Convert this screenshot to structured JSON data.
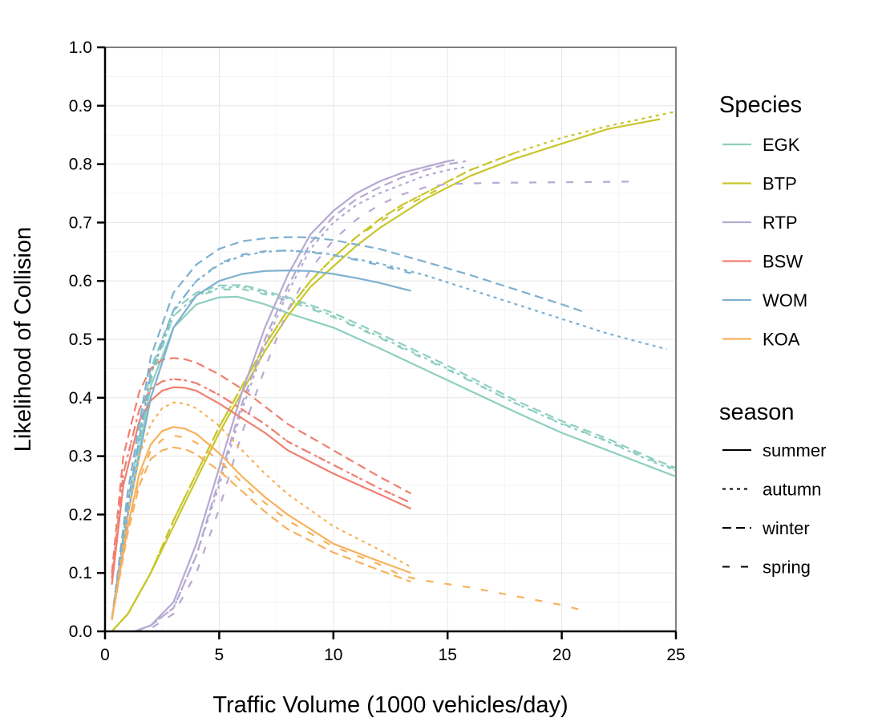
{
  "chart_data": {
    "type": "line",
    "xlabel": "Traffic Volume (1000 vehicles/day)",
    "ylabel": "Likelihood of Collision",
    "xlim": [
      0,
      25
    ],
    "ylim": [
      0,
      1
    ],
    "x_ticks": [
      0,
      5,
      10,
      15,
      20,
      25
    ],
    "y_ticks": [
      0.0,
      0.1,
      0.2,
      0.3,
      0.4,
      0.5,
      0.6,
      0.7,
      0.8,
      0.9,
      1.0
    ],
    "x_tick_labels": [
      "0",
      "5",
      "10",
      "15",
      "20",
      "25"
    ],
    "y_tick_labels": [
      "0.0",
      "0.1",
      "0.2",
      "0.3",
      "0.4",
      "0.5",
      "0.6",
      "0.7",
      "0.8",
      "0.9",
      "1.0"
    ],
    "grid": true,
    "legend_position": "right",
    "legend_species_title": "Species",
    "legend_season_title": "season",
    "species": [
      {
        "name": "EGK",
        "color": "#8ecfc0"
      },
      {
        "name": "BTP",
        "color": "#c9c62c"
      },
      {
        "name": "RTP",
        "color": "#b6a9d2"
      },
      {
        "name": "BSW",
        "color": "#f07f70"
      },
      {
        "name": "WOM",
        "color": "#7eb0d0"
      },
      {
        "name": "KOA",
        "color": "#f7b15c"
      }
    ],
    "seasons": [
      {
        "name": "summer",
        "dash": "none"
      },
      {
        "name": "autumn",
        "dash": "4,5"
      },
      {
        "name": "winter",
        "dash": "11,6"
      },
      {
        "name": "spring",
        "dash": "9,14"
      }
    ],
    "series": [
      {
        "species": "EGK",
        "season": "summer",
        "x": [
          0.3,
          1,
          2,
          3,
          4,
          5,
          5.8,
          7,
          8,
          10,
          12,
          15,
          18,
          20,
          22,
          24,
          25
        ],
        "y": [
          0.02,
          0.2,
          0.42,
          0.52,
          0.56,
          0.572,
          0.573,
          0.56,
          0.545,
          0.52,
          0.485,
          0.43,
          0.375,
          0.34,
          0.31,
          0.28,
          0.265
        ]
      },
      {
        "species": "EGK",
        "season": "autumn",
        "x": [
          0.3,
          1,
          2,
          3,
          4,
          5,
          6,
          7,
          8,
          10,
          12,
          15,
          18,
          20,
          22,
          24,
          25
        ],
        "y": [
          0.02,
          0.21,
          0.44,
          0.54,
          0.575,
          0.588,
          0.59,
          0.58,
          0.57,
          0.54,
          0.505,
          0.45,
          0.39,
          0.355,
          0.325,
          0.29,
          0.275
        ]
      },
      {
        "species": "EGK",
        "season": "winter",
        "x": [
          0.3,
          1,
          2,
          3,
          4,
          5,
          6,
          7,
          8,
          10,
          12,
          15,
          18,
          20,
          22,
          24,
          25
        ],
        "y": [
          0.02,
          0.22,
          0.45,
          0.55,
          0.58,
          0.592,
          0.593,
          0.583,
          0.572,
          0.545,
          0.51,
          0.455,
          0.395,
          0.36,
          0.33,
          0.295,
          0.28
        ]
      },
      {
        "species": "EGK",
        "season": "spring",
        "x": [
          0.3,
          1,
          2,
          3,
          4,
          5,
          6,
          7,
          8,
          10,
          12,
          15,
          18,
          20,
          22,
          24,
          25
        ],
        "y": [
          0.02,
          0.2,
          0.43,
          0.54,
          0.574,
          0.585,
          0.586,
          0.577,
          0.566,
          0.538,
          0.503,
          0.448,
          0.39,
          0.356,
          0.326,
          0.292,
          0.277
        ]
      },
      {
        "species": "BTP",
        "season": "summer",
        "x": [
          0.3,
          1,
          2,
          3,
          4,
          5,
          6,
          7,
          8,
          9,
          10,
          11,
          12,
          13,
          14,
          15,
          16,
          18,
          20,
          22,
          24.3
        ],
        "y": [
          0.0,
          0.03,
          0.1,
          0.18,
          0.26,
          0.34,
          0.41,
          0.48,
          0.54,
          0.59,
          0.625,
          0.66,
          0.69,
          0.715,
          0.74,
          0.76,
          0.78,
          0.81,
          0.835,
          0.86,
          0.877
        ]
      },
      {
        "species": "BTP",
        "season": "autumn",
        "x": [
          0.3,
          1,
          2,
          3,
          4,
          5,
          6,
          7,
          8,
          9,
          10,
          11,
          12,
          13,
          14,
          15,
          16,
          18,
          20,
          22,
          25
        ],
        "y": [
          0.0,
          0.03,
          0.1,
          0.19,
          0.27,
          0.35,
          0.42,
          0.49,
          0.55,
          0.6,
          0.64,
          0.675,
          0.705,
          0.73,
          0.75,
          0.77,
          0.79,
          0.82,
          0.845,
          0.865,
          0.89
        ]
      },
      {
        "species": "BTP",
        "season": "winter",
        "x": [
          0.3,
          1,
          2,
          3,
          4,
          5,
          6,
          7,
          8,
          9,
          10,
          11,
          12,
          13,
          14,
          15,
          16,
          18
        ],
        "y": [
          0.0,
          0.03,
          0.1,
          0.19,
          0.27,
          0.35,
          0.42,
          0.49,
          0.55,
          0.6,
          0.64,
          0.675,
          0.705,
          0.73,
          0.75,
          0.77,
          0.79,
          0.82
        ]
      },
      {
        "species": "BTP",
        "season": "spring",
        "x": [
          0.3,
          1,
          2,
          3,
          4,
          5,
          6,
          7,
          8,
          9,
          10,
          11,
          12,
          13,
          14,
          15
        ],
        "y": [
          0.0,
          0.03,
          0.1,
          0.19,
          0.27,
          0.35,
          0.42,
          0.49,
          0.55,
          0.6,
          0.64,
          0.675,
          0.7,
          0.725,
          0.745,
          0.765
        ]
      },
      {
        "species": "RTP",
        "season": "summer",
        "x": [
          1.3,
          2,
          3,
          4,
          5,
          6,
          7,
          8,
          9,
          10,
          11,
          12,
          13,
          14,
          15,
          15.3
        ],
        "y": [
          0.0,
          0.01,
          0.05,
          0.15,
          0.28,
          0.41,
          0.52,
          0.61,
          0.68,
          0.72,
          0.75,
          0.77,
          0.785,
          0.795,
          0.805,
          0.807
        ]
      },
      {
        "species": "RTP",
        "season": "autumn",
        "x": [
          1.3,
          2,
          3,
          4,
          5,
          6,
          7,
          8,
          9,
          10,
          11,
          12,
          13,
          14,
          15,
          15.8
        ],
        "y": [
          0.0,
          0.01,
          0.04,
          0.13,
          0.25,
          0.38,
          0.49,
          0.58,
          0.655,
          0.7,
          0.73,
          0.75,
          0.765,
          0.78,
          0.79,
          0.795
        ]
      },
      {
        "species": "RTP",
        "season": "winter",
        "x": [
          1.3,
          2,
          3,
          4,
          5,
          6,
          7,
          8,
          9,
          10,
          11,
          12,
          13,
          14,
          15,
          15.8
        ],
        "y": [
          0.0,
          0.01,
          0.04,
          0.13,
          0.26,
          0.39,
          0.5,
          0.59,
          0.665,
          0.71,
          0.74,
          0.76,
          0.777,
          0.79,
          0.8,
          0.805
        ]
      },
      {
        "species": "RTP",
        "season": "spring",
        "x": [
          1.3,
          2,
          3,
          4,
          5,
          6,
          7,
          8,
          9,
          10,
          11,
          12,
          13,
          14,
          15,
          17,
          20,
          23
        ],
        "y": [
          0.0,
          0.005,
          0.03,
          0.1,
          0.21,
          0.34,
          0.45,
          0.55,
          0.62,
          0.67,
          0.705,
          0.73,
          0.748,
          0.76,
          0.766,
          0.768,
          0.769,
          0.77
        ]
      },
      {
        "species": "BSW",
        "season": "summer",
        "x": [
          0.3,
          0.8,
          1.5,
          2,
          2.5,
          3,
          3.5,
          4,
          5,
          6,
          7,
          8,
          10,
          12,
          13.4
        ],
        "y": [
          0.08,
          0.25,
          0.36,
          0.395,
          0.412,
          0.418,
          0.417,
          0.412,
          0.39,
          0.365,
          0.34,
          0.31,
          0.27,
          0.235,
          0.21
        ]
      },
      {
        "species": "BSW",
        "season": "autumn",
        "x": [
          0.3,
          0.8,
          1.5,
          2,
          2.5,
          3,
          3.5,
          4,
          5,
          6,
          7,
          8,
          10,
          12,
          13.4
        ],
        "y": [
          0.09,
          0.27,
          0.38,
          0.415,
          0.428,
          0.432,
          0.43,
          0.425,
          0.405,
          0.38,
          0.355,
          0.325,
          0.285,
          0.245,
          0.22
        ]
      },
      {
        "species": "BSW",
        "season": "winter",
        "x": [
          0.3,
          0.8,
          1.5,
          2,
          2.5,
          3,
          3.5,
          4,
          5,
          6,
          7,
          8,
          10,
          12,
          13.4
        ],
        "y": [
          0.1,
          0.3,
          0.41,
          0.45,
          0.465,
          0.468,
          0.466,
          0.46,
          0.44,
          0.415,
          0.385,
          0.355,
          0.31,
          0.265,
          0.236
        ]
      },
      {
        "species": "BSW",
        "season": "spring",
        "x": [
          0.3,
          0.8,
          1.5,
          2,
          2.5,
          3,
          3.5,
          4,
          5,
          6,
          7,
          8,
          10,
          12,
          13.4
        ],
        "y": [
          0.09,
          0.27,
          0.38,
          0.415,
          0.428,
          0.432,
          0.43,
          0.425,
          0.405,
          0.38,
          0.355,
          0.325,
          0.285,
          0.245,
          0.22
        ]
      },
      {
        "species": "WOM",
        "season": "summer",
        "x": [
          0.3,
          1,
          2,
          3,
          4,
          5,
          6,
          7,
          8,
          9,
          10,
          11,
          12,
          13.4
        ],
        "y": [
          0.02,
          0.2,
          0.4,
          0.52,
          0.575,
          0.6,
          0.612,
          0.617,
          0.618,
          0.617,
          0.612,
          0.605,
          0.597,
          0.583
        ]
      },
      {
        "species": "WOM",
        "season": "autumn",
        "x": [
          0.3,
          1,
          2,
          3,
          4,
          5,
          6,
          7,
          8,
          9,
          10,
          12,
          14,
          16,
          18,
          20,
          22,
          24.6
        ],
        "y": [
          0.02,
          0.22,
          0.44,
          0.55,
          0.6,
          0.628,
          0.643,
          0.65,
          0.652,
          0.65,
          0.645,
          0.63,
          0.61,
          0.585,
          0.56,
          0.535,
          0.51,
          0.483
        ]
      },
      {
        "species": "WOM",
        "season": "winter",
        "x": [
          0.3,
          1,
          2,
          3,
          4,
          5,
          6,
          7,
          8,
          8.5,
          9,
          10,
          12,
          14,
          16,
          18,
          20,
          20.9
        ],
        "y": [
          0.02,
          0.24,
          0.47,
          0.58,
          0.628,
          0.655,
          0.668,
          0.673,
          0.675,
          0.675,
          0.674,
          0.67,
          0.655,
          0.633,
          0.61,
          0.585,
          0.56,
          0.548
        ]
      },
      {
        "species": "WOM",
        "season": "spring",
        "x": [
          0.3,
          1,
          2,
          3,
          4,
          5,
          6,
          7,
          8,
          9,
          10,
          11,
          12,
          13.4
        ],
        "y": [
          0.02,
          0.22,
          0.44,
          0.55,
          0.6,
          0.63,
          0.645,
          0.651,
          0.652,
          0.649,
          0.644,
          0.636,
          0.627,
          0.613
        ]
      },
      {
        "species": "KOA",
        "season": "summer",
        "x": [
          0.3,
          1,
          1.5,
          2,
          2.5,
          3,
          3.5,
          4,
          5,
          6,
          7,
          8,
          10,
          12,
          13.4
        ],
        "y": [
          0.02,
          0.18,
          0.27,
          0.32,
          0.343,
          0.35,
          0.347,
          0.338,
          0.305,
          0.265,
          0.23,
          0.2,
          0.15,
          0.12,
          0.1
        ]
      },
      {
        "species": "KOA",
        "season": "autumn",
        "x": [
          0.3,
          1,
          1.5,
          2,
          2.5,
          3,
          3.5,
          4,
          5,
          6,
          7,
          8,
          10,
          12,
          13.4
        ],
        "y": [
          0.02,
          0.2,
          0.3,
          0.355,
          0.382,
          0.392,
          0.39,
          0.382,
          0.352,
          0.31,
          0.27,
          0.235,
          0.18,
          0.14,
          0.11
        ]
      },
      {
        "species": "KOA",
        "season": "winter",
        "x": [
          0.3,
          1,
          1.5,
          2,
          2.5,
          3,
          3.5,
          4,
          5,
          6,
          7,
          8,
          10,
          12,
          13.4
        ],
        "y": [
          0.02,
          0.17,
          0.25,
          0.295,
          0.31,
          0.315,
          0.312,
          0.303,
          0.275,
          0.24,
          0.205,
          0.175,
          0.135,
          0.105,
          0.085
        ]
      },
      {
        "species": "KOA",
        "season": "spring",
        "x": [
          0.3,
          1,
          1.5,
          2,
          2.5,
          3,
          3.5,
          4,
          5,
          6,
          7,
          8,
          10,
          12,
          13,
          14,
          16,
          18,
          20,
          21
        ],
        "y": [
          0.02,
          0.18,
          0.26,
          0.31,
          0.328,
          0.335,
          0.332,
          0.323,
          0.292,
          0.255,
          0.22,
          0.19,
          0.145,
          0.115,
          0.095,
          0.087,
          0.075,
          0.06,
          0.045,
          0.035
        ]
      }
    ]
  }
}
